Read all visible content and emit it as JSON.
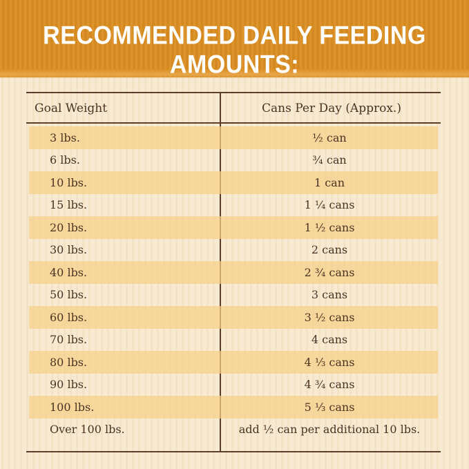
{
  "title": "RECOMMENDED DAILY FEEDING AMOUNTS:",
  "table": {
    "headers": [
      "Goal Weight",
      "Cans Per Day (Approx.)"
    ],
    "rows": [
      [
        "3 lbs.",
        "½ can"
      ],
      [
        "6 lbs.",
        "¾ can"
      ],
      [
        "10 lbs.",
        "1 can"
      ],
      [
        "15 lbs.",
        "1 ¼ cans"
      ],
      [
        "20 lbs.",
        "1 ½ cans"
      ],
      [
        "30 lbs.",
        "2 cans"
      ],
      [
        "40 lbs.",
        "2 ¾ cans"
      ],
      [
        "50 lbs.",
        "3 cans"
      ],
      [
        "60 lbs.",
        "3 ½ cans"
      ],
      [
        "70 lbs.",
        "4 cans"
      ],
      [
        "80 lbs.",
        "4 ⅓ cans"
      ],
      [
        "90 lbs.",
        "4 ¾ cans"
      ],
      [
        "100 lbs.",
        "5 ⅓ cans"
      ],
      [
        "Over 100 lbs.",
        "add ½ can per additional 10 lbs."
      ]
    ]
  },
  "colors": {
    "banner": "#dc8e22",
    "background": "#f7e7cc",
    "row_shade": "#f6d087",
    "text": "#4a3322",
    "rule": "#5a3e2a"
  }
}
